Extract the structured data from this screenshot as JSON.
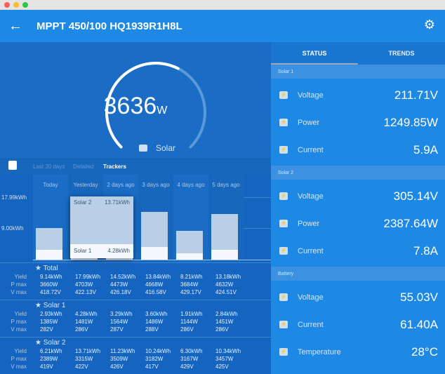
{
  "window": {
    "title": "MPPT 450/100 HQ1939R1H8L"
  },
  "gauge": {
    "value": "3636",
    "unit": "W",
    "source": "Solar",
    "fraction": 0.6
  },
  "toolbar": {
    "tabs": [
      "Last 30 days",
      "Detailed",
      "Trackers"
    ],
    "active": "Trackers"
  },
  "chart_data": {
    "type": "bar",
    "stacked": true,
    "categories": [
      "Today",
      "Yesterday",
      "2 days ago",
      "3 days ago",
      "4 days ago",
      "5 days ago"
    ],
    "series": [
      {
        "name": "Solar 1",
        "values": [
          2.93,
          4.28,
          3.29,
          3.6,
          1.91,
          2.84
        ]
      },
      {
        "name": "Solar 2",
        "values": [
          6.21,
          13.71,
          11.23,
          10.24,
          6.3,
          10.34
        ]
      }
    ],
    "y_ticks": [
      "17.99kWh",
      "9.00kWh"
    ],
    "ylim": [
      0,
      17.99
    ],
    "tooltip": {
      "rows": [
        {
          "label": "Solar 2",
          "value": "13.71kWh"
        },
        {
          "label": "Solar 1",
          "value": "4.28kWh"
        }
      ]
    }
  },
  "table": {
    "row_labels": [
      "Yield",
      "P max",
      "V max"
    ],
    "groups": [
      {
        "title": "Total",
        "cols": [
          [
            "9.14kWh",
            "3660W",
            "418.72V"
          ],
          [
            "17.99kWh",
            "4703W",
            "422.13V"
          ],
          [
            "14.52kWh",
            "4473W",
            "426.18V"
          ],
          [
            "13.84kWh",
            "4668W",
            "416.58V"
          ],
          [
            "8.21kWh",
            "3684W",
            "429.17V"
          ],
          [
            "13.18kWh",
            "4632W",
            "424.51V"
          ]
        ]
      },
      {
        "title": "Solar 1",
        "cols": [
          [
            "2.93kWh",
            "1385W",
            "282V"
          ],
          [
            "4.28kWh",
            "1481W",
            "286V"
          ],
          [
            "3.29kWh",
            "1564W",
            "287V"
          ],
          [
            "3.60kWh",
            "1486W",
            "288V"
          ],
          [
            "1.91kWh",
            "1144W",
            "286V"
          ],
          [
            "2.84kWh",
            "1451W",
            "286V"
          ]
        ]
      },
      {
        "title": "Solar 2",
        "cols": [
          [
            "6.21kWh",
            "2389W",
            "419V"
          ],
          [
            "13.71kWh",
            "3315W",
            "422V"
          ],
          [
            "11.23kWh",
            "3509W",
            "426V"
          ],
          [
            "10.24kWh",
            "3182W",
            "417V"
          ],
          [
            "6.30kWh",
            "3167W",
            "429V"
          ],
          [
            "10.34kWh",
            "3457W",
            "425V"
          ]
        ]
      }
    ]
  },
  "status": {
    "tabs": [
      "STATUS",
      "TRENDS"
    ],
    "sections": [
      {
        "title": "Solar 1",
        "rows": [
          {
            "label": "Voltage",
            "value": "211.71V"
          },
          {
            "label": "Power",
            "value": "1249.85W"
          },
          {
            "label": "Current",
            "value": "5.9A"
          }
        ]
      },
      {
        "title": "Solar 2",
        "rows": [
          {
            "label": "Voltage",
            "value": "305.14V"
          },
          {
            "label": "Power",
            "value": "2387.64W"
          },
          {
            "label": "Current",
            "value": "7.8A"
          }
        ]
      },
      {
        "title": "Battery",
        "rows": [
          {
            "label": "Voltage",
            "value": "55.03V"
          },
          {
            "label": "Current",
            "value": "61.40A"
          },
          {
            "label": "Temperature",
            "value": "28°C"
          }
        ]
      }
    ]
  }
}
